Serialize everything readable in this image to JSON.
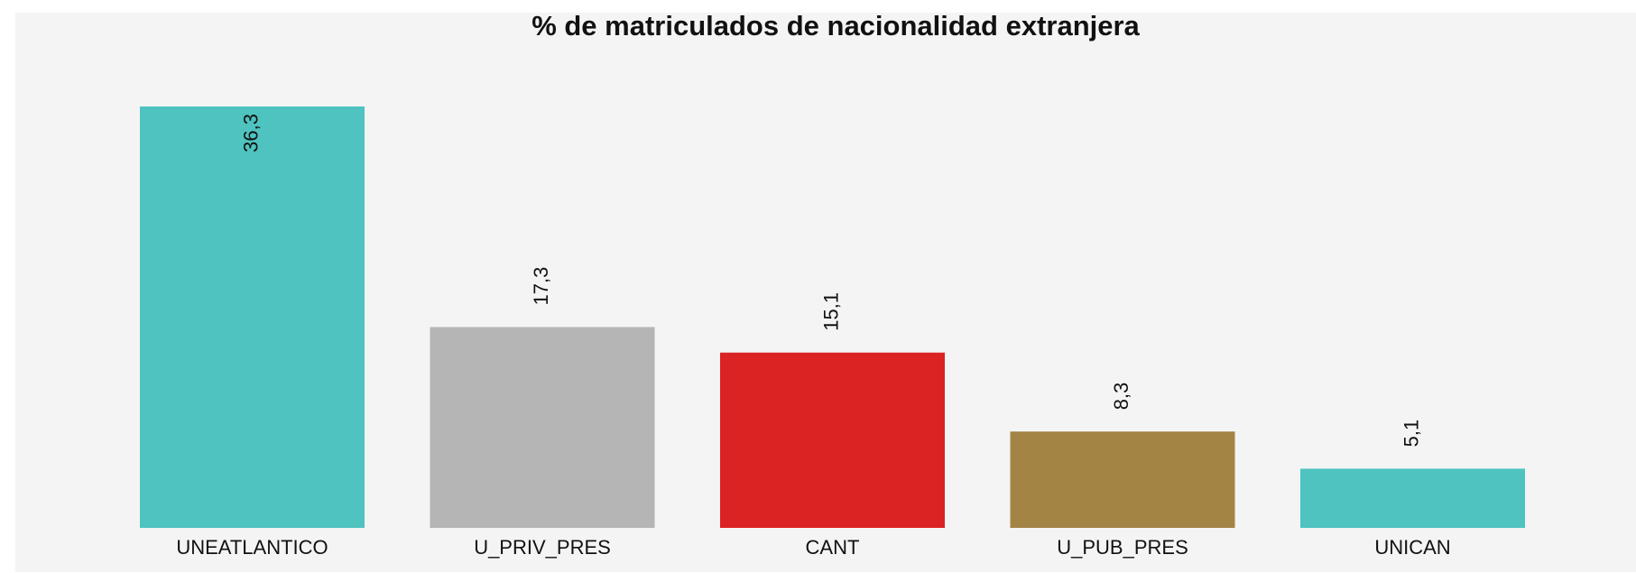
{
  "chart_data": {
    "type": "bar",
    "title": "% de matriculados de nacionalidad extranjera",
    "categories": [
      "UNEATLANTICO",
      "U_PRIV_PRES",
      "CANT",
      "U_PUB_PRES",
      "UNICAN"
    ],
    "values": [
      36.3,
      17.3,
      15.1,
      8.3,
      5.1
    ],
    "value_labels": [
      "36,3",
      "17,3",
      "15,1",
      "8,3",
      "5,1"
    ],
    "colors": [
      "#4ec3bf",
      "#b5b5b5",
      "#db2323",
      "#a48445",
      "#4ec3bf"
    ]
  }
}
